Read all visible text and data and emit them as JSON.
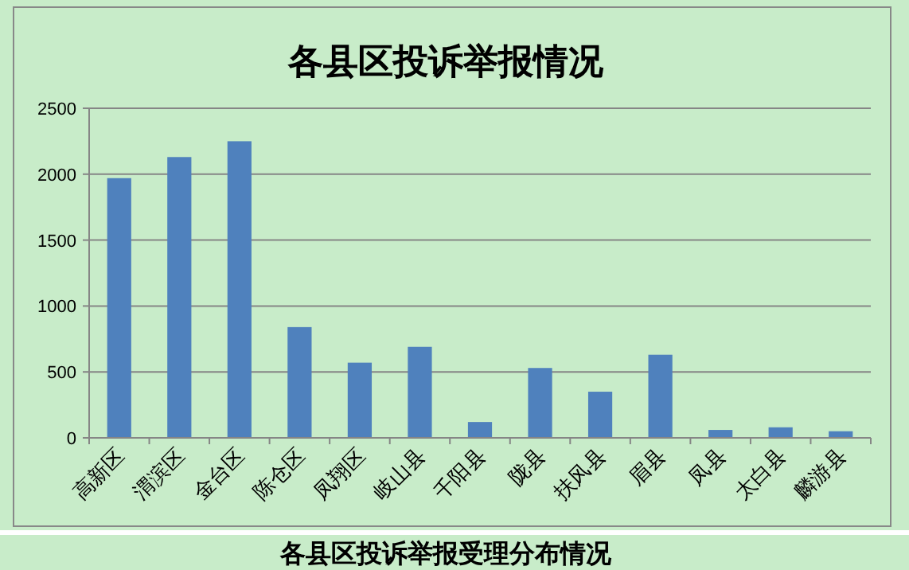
{
  "chart_data": {
    "type": "bar",
    "title": "各县区投诉举报情况",
    "categories": [
      "高新区",
      "渭滨区",
      "金台区",
      "陈仓区",
      "凤翔区",
      "岐山县",
      "千阳县",
      "陇县",
      "扶风县",
      "眉县",
      "凤县",
      "太白县",
      "麟游县"
    ],
    "values": [
      1970,
      2130,
      2250,
      840,
      570,
      690,
      120,
      530,
      350,
      630,
      60,
      80,
      50
    ],
    "color": "#4f81bd",
    "ylim": [
      0,
      2500
    ],
    "yticks": [
      0,
      500,
      1000,
      1500,
      2000,
      2500
    ],
    "grid": "y",
    "annotations": [
      "各县区投诉举报受理分布情况"
    ]
  }
}
